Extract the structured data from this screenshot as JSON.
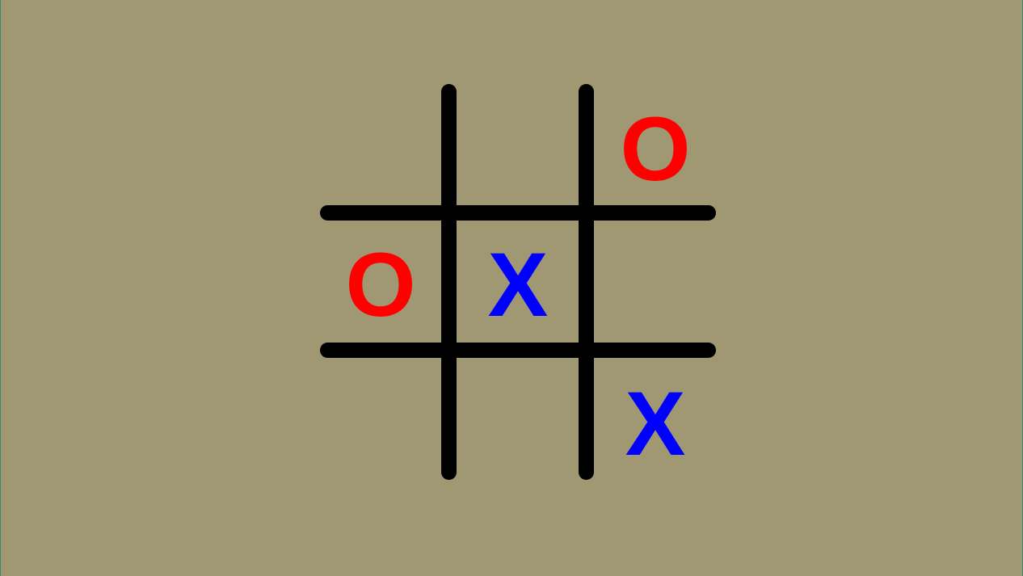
{
  "board": {
    "cells": [
      {
        "row": 0,
        "col": 0,
        "mark": ""
      },
      {
        "row": 0,
        "col": 1,
        "mark": ""
      },
      {
        "row": 0,
        "col": 2,
        "mark": "O"
      },
      {
        "row": 1,
        "col": 0,
        "mark": "O"
      },
      {
        "row": 1,
        "col": 1,
        "mark": "X"
      },
      {
        "row": 1,
        "col": 2,
        "mark": ""
      },
      {
        "row": 2,
        "col": 0,
        "mark": ""
      },
      {
        "row": 2,
        "col": 1,
        "mark": ""
      },
      {
        "row": 2,
        "col": 2,
        "mark": "X"
      }
    ]
  },
  "colors": {
    "background": "#a09872",
    "grid": "#000000",
    "o_mark": "#ff0000",
    "x_mark": "#0000ff"
  }
}
